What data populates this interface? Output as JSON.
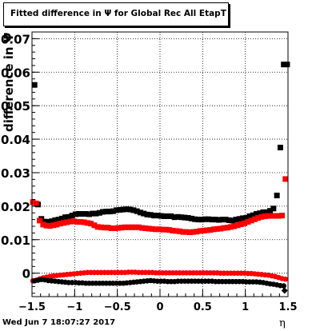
{
  "title": "Fitted difference in Ψ  for Global Rec All EtapT",
  "timestamp": "Wed Jun  7 18:07:27 2017",
  "chart_data": {
    "type": "scatter",
    "title": "Fitted difference in Ψ  for Global Rec All EtapT",
    "xlabel": "η",
    "ylabel": "difference in Ψ",
    "xlim": [
      -1.5,
      1.5
    ],
    "ylim": [
      -0.007,
      0.072
    ],
    "grid": true,
    "xticks": [
      -1.5,
      -1,
      -0.5,
      0,
      0.5,
      1,
      1.5
    ],
    "xtick_labels": [
      "−1.5",
      "−1",
      "−0.5",
      "0",
      "0.5",
      "1",
      "1.5"
    ],
    "yticks": [
      0,
      0.01,
      0.02,
      0.03,
      0.04,
      0.05,
      0.06,
      0.07
    ],
    "ytick_labels": [
      "0",
      "0.01",
      "0.02",
      "0.03",
      "0.04",
      "0.05",
      "0.06",
      "0.07"
    ],
    "series": [
      {
        "marker": "square",
        "color": "#000000",
        "x": [
          -1.47,
          -1.43,
          -1.39,
          -1.35,
          -1.31,
          -1.27,
          -1.23,
          -1.19,
          -1.15,
          -1.11,
          -1.07,
          -1.03,
          -0.99,
          -0.95,
          -0.91,
          -0.87,
          -0.83,
          -0.79,
          -0.75,
          -0.71,
          -0.67,
          -0.63,
          -0.59,
          -0.55,
          -0.51,
          -0.47,
          -0.43,
          -0.39,
          -0.35,
          -0.31,
          -0.27,
          -0.23,
          -0.19,
          -0.15,
          -0.11,
          -0.07,
          -0.03,
          0.01,
          0.05,
          0.09,
          0.13,
          0.17,
          0.21,
          0.25,
          0.29,
          0.33,
          0.37,
          0.41,
          0.45,
          0.49,
          0.53,
          0.57,
          0.61,
          0.65,
          0.69,
          0.73,
          0.77,
          0.81,
          0.85,
          0.89,
          0.93,
          0.97,
          1.01,
          1.05,
          1.09,
          1.13,
          1.17,
          1.21,
          1.25,
          1.29,
          1.33,
          1.37,
          1.41,
          1.45,
          1.49
        ],
        "y": [
          0.0562,
          0.0205,
          0.0162,
          0.0154,
          0.0153,
          0.0155,
          0.0158,
          0.016,
          0.0163,
          0.0167,
          0.0168,
          0.0172,
          0.0176,
          0.0177,
          0.0177,
          0.0177,
          0.0176,
          0.0178,
          0.0178,
          0.018,
          0.0183,
          0.0184,
          0.0184,
          0.0185,
          0.0188,
          0.0189,
          0.019,
          0.0191,
          0.019,
          0.0188,
          0.0185,
          0.0181,
          0.0178,
          0.0175,
          0.0174,
          0.0172,
          0.0172,
          0.0171,
          0.017,
          0.017,
          0.017,
          0.0167,
          0.0168,
          0.0167,
          0.0166,
          0.0165,
          0.0163,
          0.0161,
          0.016,
          0.016,
          0.0161,
          0.0161,
          0.016,
          0.016,
          0.0159,
          0.016,
          0.016,
          0.0158,
          0.0157,
          0.016,
          0.0162,
          0.0164,
          0.0165,
          0.017,
          0.0173,
          0.0177,
          0.0179,
          0.0182,
          0.0182,
          0.0186,
          0.0193,
          0.0232,
          0.0375,
          0.0623,
          0.0623
        ]
      },
      {
        "marker": "square",
        "color": "#ff0000",
        "x": [
          -1.49,
          -1.45,
          -1.41,
          -1.37,
          -1.33,
          -1.29,
          -1.25,
          -1.21,
          -1.17,
          -1.13,
          -1.09,
          -1.05,
          -1.01,
          -0.97,
          -0.93,
          -0.89,
          -0.85,
          -0.81,
          -0.77,
          -0.73,
          -0.69,
          -0.65,
          -0.61,
          -0.57,
          -0.53,
          -0.49,
          -0.45,
          -0.41,
          -0.37,
          -0.33,
          -0.29,
          -0.25,
          -0.21,
          -0.17,
          -0.13,
          -0.09,
          -0.05,
          -0.01,
          0.03,
          0.07,
          0.11,
          0.15,
          0.19,
          0.23,
          0.27,
          0.31,
          0.35,
          0.39,
          0.43,
          0.47,
          0.51,
          0.55,
          0.59,
          0.63,
          0.67,
          0.71,
          0.75,
          0.79,
          0.83,
          0.87,
          0.91,
          0.95,
          0.99,
          1.03,
          1.07,
          1.11,
          1.15,
          1.19,
          1.23,
          1.27,
          1.31,
          1.35,
          1.39,
          1.43,
          1.47
        ],
        "y": [
          0.0212,
          0.0208,
          0.0157,
          0.0145,
          0.0142,
          0.0141,
          0.0143,
          0.0145,
          0.0148,
          0.015,
          0.0152,
          0.0154,
          0.0155,
          0.0153,
          0.0153,
          0.0152,
          0.015,
          0.0148,
          0.0143,
          0.0138,
          0.0137,
          0.0136,
          0.0136,
          0.0134,
          0.0134,
          0.0135,
          0.0136,
          0.0137,
          0.0137,
          0.0137,
          0.0137,
          0.0137,
          0.0135,
          0.0134,
          0.0133,
          0.0132,
          0.0131,
          0.0131,
          0.013,
          0.013,
          0.0129,
          0.0127,
          0.0126,
          0.0125,
          0.0123,
          0.0123,
          0.0122,
          0.0123,
          0.0124,
          0.0126,
          0.0127,
          0.0128,
          0.0129,
          0.0131,
          0.0132,
          0.0133,
          0.0135,
          0.0136,
          0.0138,
          0.014,
          0.0143,
          0.0146,
          0.0149,
          0.0153,
          0.0157,
          0.0161,
          0.0165,
          0.0168,
          0.017,
          0.0171,
          0.0171,
          0.0171,
          0.0171,
          0.0172,
          0.0281
        ]
      },
      {
        "marker": "circle",
        "color": "#ff0000",
        "x": [
          -1.49,
          -1.45,
          -1.41,
          -1.37,
          -1.33,
          -1.29,
          -1.25,
          -1.21,
          -1.17,
          -1.13,
          -1.09,
          -1.05,
          -1.01,
          -0.97,
          -0.93,
          -0.89,
          -0.85,
          -0.81,
          -0.77,
          -0.73,
          -0.69,
          -0.65,
          -0.61,
          -0.57,
          -0.53,
          -0.49,
          -0.45,
          -0.41,
          -0.37,
          -0.33,
          -0.29,
          -0.25,
          -0.21,
          -0.17,
          -0.13,
          -0.09,
          -0.05,
          -0.01,
          0.03,
          0.07,
          0.11,
          0.15,
          0.19,
          0.23,
          0.27,
          0.31,
          0.35,
          0.39,
          0.43,
          0.47,
          0.51,
          0.55,
          0.59,
          0.63,
          0.67,
          0.71,
          0.75,
          0.79,
          0.83,
          0.87,
          0.91,
          0.95,
          0.99,
          1.03,
          1.07,
          1.11,
          1.15,
          1.19,
          1.23,
          1.27,
          1.31,
          1.35,
          1.39,
          1.43,
          1.47
        ],
        "y": [
          -0.0023,
          -0.0021,
          -0.0017,
          -0.0014,
          -0.0012,
          -0.001,
          -0.0008,
          -0.0007,
          -0.0006,
          -0.0005,
          -0.0004,
          -0.0003,
          -0.0002,
          -0.0001,
          0.0,
          0.0001,
          0.0002,
          0.0002,
          0.0002,
          0.0002,
          0.0002,
          0.0002,
          0.0002,
          0.0002,
          0.0002,
          0.0002,
          0.0002,
          0.0002,
          0.0003,
          0.0003,
          0.0003,
          0.0002,
          0.0002,
          0.0002,
          0.0002,
          0.0002,
          0.0001,
          0.0001,
          0.0001,
          0.0001,
          0.0001,
          0.0001,
          0.0001,
          0.0001,
          0.0001,
          0.0001,
          0.0001,
          0.0001,
          0.0001,
          0.0001,
          0.0001,
          0.0001,
          0.0001,
          0.0001,
          0.0001,
          0.0,
          0.0,
          0.0,
          0.0,
          0.0,
          0.0,
          0.0,
          0.0,
          -0.0001,
          -0.0001,
          -0.0002,
          -0.0003,
          -0.0004,
          -0.0005,
          -0.0006,
          -0.0008,
          -0.001,
          -0.0013,
          -0.0016,
          -0.0018
        ]
      },
      {
        "marker": "circle",
        "color": "#000000",
        "x": [
          -1.47,
          -1.43,
          -1.39,
          -1.35,
          -1.31,
          -1.27,
          -1.23,
          -1.19,
          -1.15,
          -1.11,
          -1.07,
          -1.03,
          -0.99,
          -0.95,
          -0.91,
          -0.87,
          -0.83,
          -0.79,
          -0.75,
          -0.71,
          -0.67,
          -0.63,
          -0.59,
          -0.55,
          -0.51,
          -0.47,
          -0.43,
          -0.39,
          -0.35,
          -0.31,
          -0.27,
          -0.23,
          -0.19,
          -0.15,
          -0.11,
          -0.07,
          -0.03,
          0.01,
          0.05,
          0.09,
          0.13,
          0.17,
          0.21,
          0.25,
          0.29,
          0.33,
          0.37,
          0.41,
          0.45,
          0.49,
          0.53,
          0.57,
          0.61,
          0.65,
          0.69,
          0.73,
          0.77,
          0.81,
          0.85,
          0.89,
          0.93,
          0.97,
          1.01,
          1.05,
          1.09,
          1.13,
          1.17,
          1.21,
          1.25,
          1.29,
          1.33,
          1.37,
          1.41,
          1.45
        ],
        "y": [
          -0.0023,
          -0.0021,
          -0.0019,
          -0.002,
          -0.0022,
          -0.0023,
          -0.0024,
          -0.0025,
          -0.0026,
          -0.0027,
          -0.0028,
          -0.0028,
          -0.0028,
          -0.0029,
          -0.0029,
          -0.003,
          -0.003,
          -0.003,
          -0.003,
          -0.003,
          -0.003,
          -0.003,
          -0.003,
          -0.003,
          -0.003,
          -0.003,
          -0.003,
          -0.0029,
          -0.0028,
          -0.0027,
          -0.0026,
          -0.0025,
          -0.0024,
          -0.0023,
          -0.0022,
          -0.0023,
          -0.0024,
          -0.0024,
          -0.0024,
          -0.0025,
          -0.0025,
          -0.0025,
          -0.0024,
          -0.0024,
          -0.0024,
          -0.0024,
          -0.0024,
          -0.0024,
          -0.0024,
          -0.0024,
          -0.0024,
          -0.0024,
          -0.0024,
          -0.0025,
          -0.0025,
          -0.0025,
          -0.0025,
          -0.0025,
          -0.0025,
          -0.0025,
          -0.0025,
          -0.0025,
          -0.0026,
          -0.0026,
          -0.0026,
          -0.0026,
          -0.0027,
          -0.0028,
          -0.003,
          -0.0032,
          -0.0033,
          -0.0035,
          -0.0037,
          -0.0038
        ]
      },
      {
        "marker": "diamond",
        "color": "#000000",
        "x": [
          1.46
        ],
        "y": [
          -0.0052
        ]
      }
    ]
  }
}
